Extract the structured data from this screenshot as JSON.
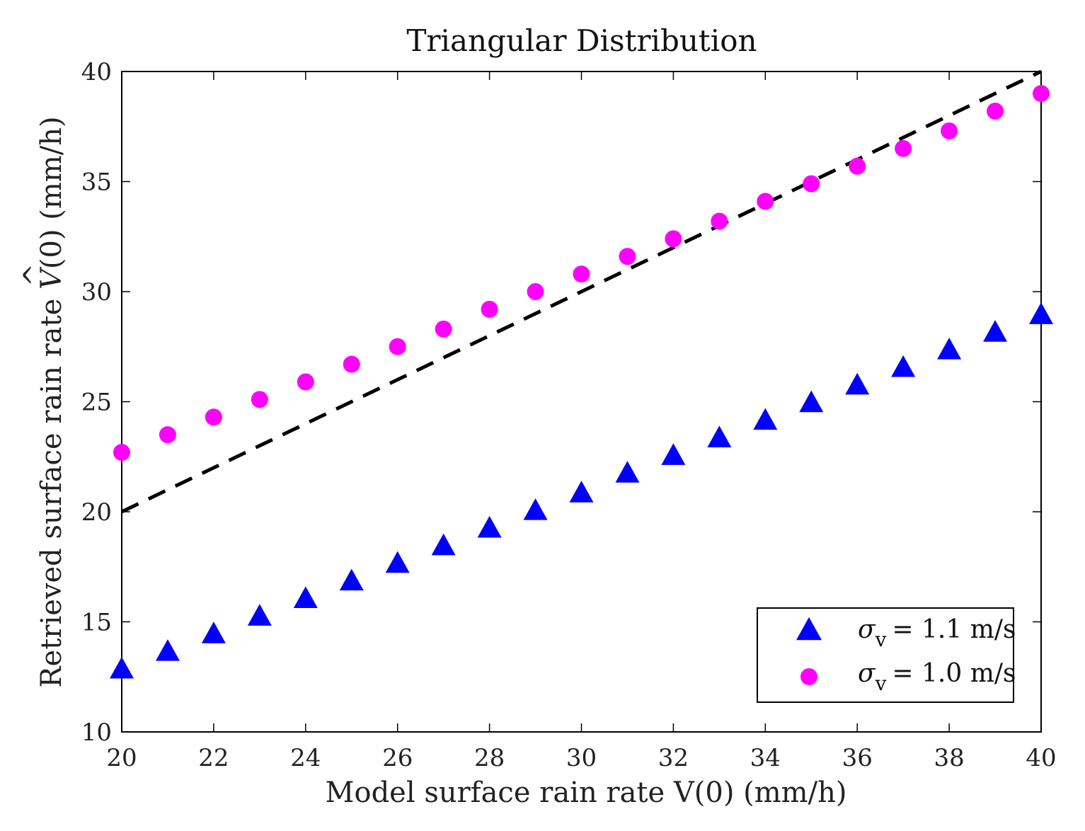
{
  "chart_data": {
    "type": "scatter",
    "title": "Triangular Distribution",
    "xlabel": "Model surface rain rate V(0) (mm/h)",
    "ylabel_prefix": "Retrieved surface rain rate ",
    "ylabel_symbol": "V",
    "ylabel_hat": "^",
    "ylabel_suffix": "(0) (mm/h)",
    "xlim": [
      20,
      40
    ],
    "ylim": [
      10,
      40
    ],
    "xticks": [
      20,
      22,
      24,
      26,
      28,
      30,
      32,
      34,
      36,
      38,
      40
    ],
    "yticks": [
      10,
      15,
      20,
      25,
      30,
      35,
      40
    ],
    "x": [
      20,
      21,
      22,
      23,
      24,
      25,
      26,
      27,
      28,
      29,
      30,
      31,
      32,
      33,
      34,
      35,
      36,
      37,
      38,
      39,
      40
    ],
    "series": [
      {
        "name": "σ_v = 1.1 m/s",
        "symbol": "σ",
        "subscript": "v",
        "value_text": "= 1.1 m/s",
        "marker": "triangle",
        "color": "#0000ff",
        "values": [
          12.8,
          13.6,
          14.4,
          15.2,
          16.0,
          16.8,
          17.6,
          18.4,
          19.2,
          20.0,
          20.8,
          21.7,
          22.5,
          23.3,
          24.1,
          24.9,
          25.7,
          26.5,
          27.3,
          28.1,
          28.9
        ]
      },
      {
        "name": "σ_v = 1.0 m/s",
        "symbol": "σ",
        "subscript": "v",
        "value_text": "= 1.0 m/s",
        "marker": "circle",
        "color": "#ff00ff",
        "values": [
          22.7,
          23.5,
          24.3,
          25.1,
          25.9,
          26.7,
          27.5,
          28.3,
          29.2,
          30.0,
          30.8,
          31.6,
          32.4,
          33.2,
          34.1,
          34.9,
          35.7,
          36.5,
          37.3,
          38.2,
          39.0
        ]
      }
    ],
    "reference_line": {
      "style": "dashed",
      "color": "#000000",
      "from": [
        20,
        20
      ],
      "to": [
        40,
        40
      ]
    },
    "legend_position": "bottom-right",
    "grid": false
  }
}
